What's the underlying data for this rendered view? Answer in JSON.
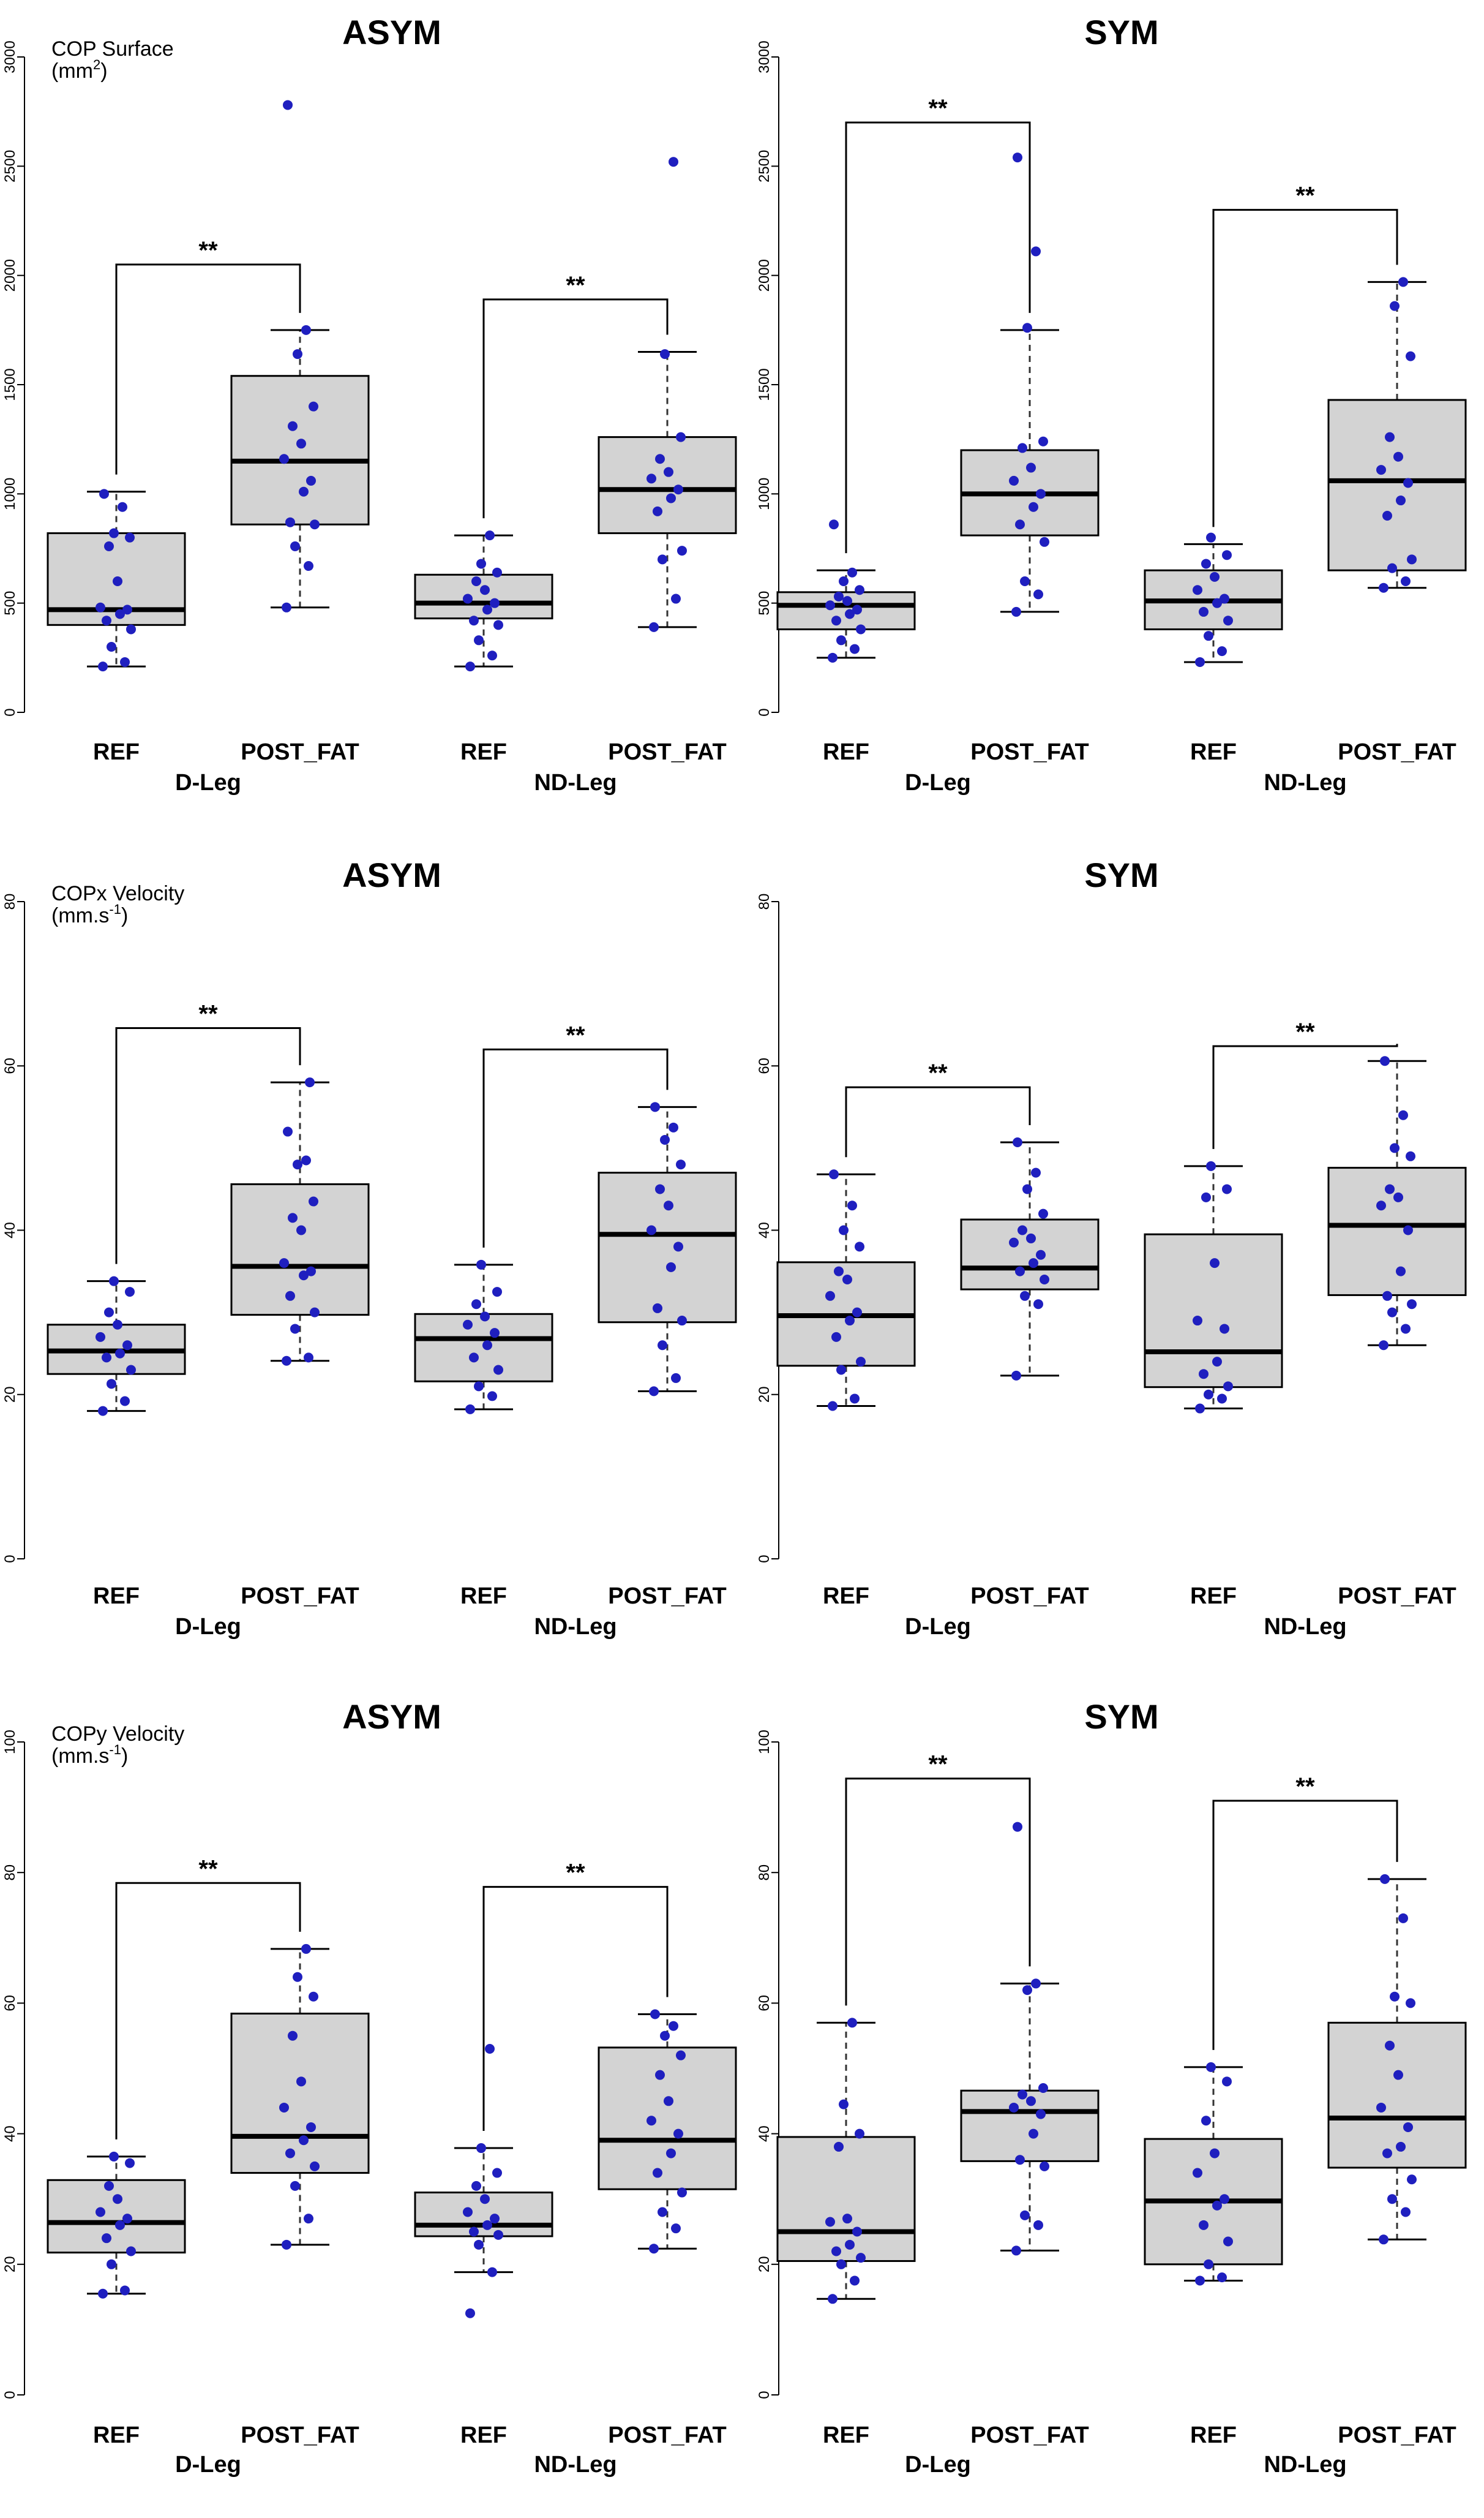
{
  "chart_data": [
    {
      "type": "boxplot",
      "title": "ASYM",
      "ylabel": "COP Surface",
      "yunit_base": "(mm",
      "yunit_sup": "2",
      "yunit_end": ")",
      "ylim": [
        0,
        3000
      ],
      "yticks": [
        "0",
        "500",
        "1000",
        "1500",
        "2000",
        "2500",
        "3000"
      ],
      "categories": [
        "REF",
        "POST_FAT",
        "REF",
        "POST_FAT"
      ],
      "groups": [
        "D-Leg",
        "ND-Leg"
      ],
      "boxes": [
        {
          "q1": 400,
          "median": 470,
          "q3": 820,
          "whisker_low": 210,
          "whisker_high": 1010,
          "points": [
            210,
            230,
            300,
            380,
            420,
            450,
            470,
            480,
            600,
            760,
            800,
            820,
            940,
            1000
          ]
        },
        {
          "q1": 860,
          "median": 1150,
          "q3": 1540,
          "whisker_low": 480,
          "whisker_high": 1750,
          "points": [
            480,
            670,
            760,
            860,
            870,
            1010,
            1060,
            1160,
            1230,
            1310,
            1400,
            1640,
            1750,
            2780
          ]
        },
        {
          "q1": 430,
          "median": 500,
          "q3": 630,
          "whisker_low": 210,
          "whisker_high": 810,
          "points": [
            210,
            260,
            330,
            400,
            420,
            470,
            500,
            520,
            560,
            600,
            640,
            680,
            810
          ]
        },
        {
          "q1": 820,
          "median": 1020,
          "q3": 1260,
          "whisker_low": 390,
          "whisker_high": 1650,
          "points": [
            390,
            520,
            700,
            740,
            920,
            980,
            1020,
            1070,
            1100,
            1160,
            1260,
            1640,
            2520
          ]
        }
      ],
      "comparisons": [
        {
          "from": 0,
          "to": 1,
          "y": 2050,
          "label": "**"
        },
        {
          "from": 2,
          "to": 3,
          "y": 1890,
          "label": "**"
        }
      ]
    },
    {
      "type": "boxplot",
      "title": "SYM",
      "ylabel": "",
      "ylim": [
        0,
        3000
      ],
      "yticks": [
        "0",
        "500",
        "1000",
        "1500",
        "2000",
        "2500",
        "3000"
      ],
      "categories": [
        "REF",
        "POST_FAT",
        "REF",
        "POST_FAT"
      ],
      "groups": [
        "D-Leg",
        "ND-Leg"
      ],
      "boxes": [
        {
          "q1": 380,
          "median": 490,
          "q3": 550,
          "whisker_low": 250,
          "whisker_high": 650,
          "points": [
            250,
            290,
            330,
            380,
            420,
            450,
            470,
            490,
            510,
            530,
            560,
            600,
            640,
            860
          ]
        },
        {
          "q1": 810,
          "median": 1000,
          "q3": 1200,
          "whisker_low": 460,
          "whisker_high": 1750,
          "points": [
            460,
            540,
            600,
            780,
            860,
            940,
            1000,
            1060,
            1120,
            1210,
            1240,
            1760,
            2110,
            2540
          ]
        },
        {
          "q1": 380,
          "median": 510,
          "q3": 650,
          "whisker_low": 230,
          "whisker_high": 770,
          "points": [
            230,
            280,
            350,
            420,
            460,
            500,
            520,
            560,
            620,
            680,
            720,
            800
          ]
        },
        {
          "q1": 650,
          "median": 1060,
          "q3": 1430,
          "whisker_low": 570,
          "whisker_high": 1970,
          "points": [
            570,
            600,
            660,
            700,
            900,
            970,
            1050,
            1110,
            1170,
            1260,
            1630,
            1860,
            1970
          ]
        }
      ],
      "comparisons": [
        {
          "from": 0,
          "to": 1,
          "y": 2700,
          "label": "**"
        },
        {
          "from": 2,
          "to": 3,
          "y": 2300,
          "label": "**"
        }
      ]
    },
    {
      "type": "boxplot",
      "title": "ASYM",
      "ylabel": "COPx Velocity",
      "yunit_base": "(mm.s",
      "yunit_sup": "-1",
      "yunit_end": ")",
      "ylim": [
        0,
        80
      ],
      "yticks": [
        "0",
        "20",
        "40",
        "60",
        "80"
      ],
      "categories": [
        "REF",
        "POST_FAT",
        "REF",
        "POST_FAT"
      ],
      "groups": [
        "D-Leg",
        "ND-Leg"
      ],
      "boxes": [
        {
          "q1": 22.5,
          "median": 25.3,
          "q3": 28.5,
          "whisker_low": 18.0,
          "whisker_high": 33.8,
          "points": [
            18.0,
            19.2,
            21.3,
            23.0,
            24.5,
            25.0,
            26.0,
            27.0,
            28.5,
            30.0,
            32.5,
            33.8
          ]
        },
        {
          "q1": 29.7,
          "median": 35.6,
          "q3": 45.6,
          "whisker_low": 24.1,
          "whisker_high": 58.0,
          "points": [
            24.1,
            24.5,
            28.0,
            30.0,
            32.0,
            34.5,
            35.0,
            36.0,
            40.0,
            41.5,
            43.5,
            48.0,
            48.5,
            52.0,
            58.0
          ]
        },
        {
          "q1": 21.6,
          "median": 26.8,
          "q3": 29.8,
          "whisker_low": 18.2,
          "whisker_high": 35.8,
          "points": [
            18.2,
            19.8,
            21.0,
            23.0,
            24.5,
            26.0,
            27.5,
            28.5,
            29.5,
            31.0,
            32.5,
            35.8
          ]
        },
        {
          "q1": 28.8,
          "median": 39.5,
          "q3": 47.0,
          "whisker_low": 20.4,
          "whisker_high": 55.0,
          "points": [
            20.4,
            22.0,
            26.0,
            29.0,
            30.5,
            35.5,
            38.0,
            40.0,
            43.0,
            45.0,
            48.0,
            51.0,
            52.5,
            55.0
          ]
        }
      ],
      "comparisons": [
        {
          "from": 0,
          "to": 1,
          "y": 64.6,
          "label": "**"
        },
        {
          "from": 2,
          "to": 3,
          "y": 62.0,
          "label": "**"
        }
      ]
    },
    {
      "type": "boxplot",
      "title": "SYM",
      "ylabel": "",
      "ylim": [
        0,
        80
      ],
      "yticks": [
        "0",
        "20",
        "40",
        "60",
        "80"
      ],
      "categories": [
        "REF",
        "POST_FAT",
        "REF",
        "POST_FAT"
      ],
      "groups": [
        "D-Leg",
        "ND-Leg"
      ],
      "boxes": [
        {
          "q1": 23.5,
          "median": 29.6,
          "q3": 36.1,
          "whisker_low": 18.6,
          "whisker_high": 46.8,
          "points": [
            18.6,
            19.5,
            23.0,
            24.0,
            27.0,
            29.0,
            30.0,
            32.0,
            34.0,
            35.0,
            38.0,
            40.0,
            43.0,
            46.8
          ]
        },
        {
          "q1": 32.8,
          "median": 35.4,
          "q3": 41.3,
          "whisker_low": 22.3,
          "whisker_high": 50.7,
          "points": [
            22.3,
            31.0,
            32.0,
            34.0,
            35.0,
            36.0,
            37.0,
            38.5,
            39.0,
            40.0,
            42.0,
            45.0,
            47.0,
            50.7
          ]
        },
        {
          "q1": 20.9,
          "median": 25.2,
          "q3": 39.5,
          "whisker_low": 18.3,
          "whisker_high": 47.8,
          "points": [
            18.3,
            19.5,
            20.0,
            21.0,
            22.5,
            24.0,
            28.0,
            29.0,
            36.0,
            44.0,
            45.0,
            47.8
          ]
        },
        {
          "q1": 32.1,
          "median": 40.6,
          "q3": 47.6,
          "whisker_low": 26.0,
          "whisker_high": 60.6,
          "points": [
            26.0,
            28.0,
            30.0,
            31.0,
            32.0,
            35.0,
            40.0,
            43.0,
            44.0,
            45.0,
            49.0,
            50.0,
            54.0,
            60.6
          ]
        }
      ],
      "comparisons": [
        {
          "from": 0,
          "to": 1,
          "y": 57.4,
          "label": "**"
        },
        {
          "from": 2,
          "to": 3,
          "y": 62.4,
          "label": "**"
        }
      ]
    },
    {
      "type": "boxplot",
      "title": "ASYM",
      "ylabel": "COPy Velocity",
      "yunit_base": "(mm.s",
      "yunit_sup": "-1",
      "yunit_end": ")",
      "ylim": [
        0,
        100
      ],
      "yticks": [
        "0",
        "20",
        "40",
        "60",
        "80",
        "100"
      ],
      "categories": [
        "REF",
        "POST_FAT",
        "REF",
        "POST_FAT"
      ],
      "groups": [
        "D-Leg",
        "ND-Leg"
      ],
      "boxes": [
        {
          "q1": 21.8,
          "median": 26.4,
          "q3": 32.9,
          "whisker_low": 15.5,
          "whisker_high": 36.5,
          "points": [
            15.5,
            16.0,
            20.0,
            22.0,
            24.0,
            26.0,
            27.0,
            28.0,
            30.0,
            32.0,
            35.5,
            36.5
          ]
        },
        {
          "q1": 34.0,
          "median": 39.6,
          "q3": 58.4,
          "whisker_low": 23.0,
          "whisker_high": 68.3,
          "points": [
            23.0,
            27.0,
            32.0,
            35.0,
            37.0,
            39.0,
            41.0,
            44.0,
            48.0,
            55.0,
            61.0,
            64.0,
            68.3
          ]
        },
        {
          "q1": 24.3,
          "median": 26.0,
          "q3": 31.0,
          "whisker_low": 18.8,
          "whisker_high": 37.8,
          "points": [
            12.5,
            18.8,
            23.0,
            24.5,
            25.0,
            26.0,
            27.0,
            28.0,
            30.0,
            32.0,
            34.0,
            37.8,
            53.0
          ]
        },
        {
          "q1": 31.5,
          "median": 39.0,
          "q3": 53.2,
          "whisker_low": 22.4,
          "whisker_high": 58.3,
          "points": [
            22.4,
            25.5,
            28.0,
            31.0,
            34.0,
            37.0,
            40.0,
            42.0,
            45.0,
            49.0,
            52.0,
            55.0,
            56.5,
            58.3
          ]
        }
      ],
      "comparisons": [
        {
          "from": 0,
          "to": 1,
          "y": 78.4,
          "label": "**"
        },
        {
          "from": 2,
          "to": 3,
          "y": 77.8,
          "label": "**"
        }
      ]
    },
    {
      "type": "boxplot",
      "title": "SYM",
      "ylabel": "",
      "ylim": [
        0,
        100
      ],
      "yticks": [
        "0",
        "20",
        "40",
        "60",
        "80",
        "100"
      ],
      "categories": [
        "REF",
        "POST_FAT",
        "REF",
        "POST_FAT"
      ],
      "groups": [
        "D-Leg",
        "ND-Leg"
      ],
      "boxes": [
        {
          "q1": 20.5,
          "median": 25.0,
          "q3": 39.5,
          "whisker_low": 14.7,
          "whisker_high": 57.0,
          "points": [
            14.7,
            17.5,
            20.0,
            21.0,
            22.0,
            23.0,
            25.0,
            26.5,
            27.0,
            38.0,
            40.0,
            44.5,
            57.0
          ]
        },
        {
          "q1": 35.8,
          "median": 43.4,
          "q3": 46.6,
          "whisker_low": 22.1,
          "whisker_high": 63.0,
          "points": [
            22.1,
            26.0,
            27.5,
            35.0,
            36.0,
            40.0,
            43.0,
            44.0,
            45.0,
            46.0,
            47.0,
            62.0,
            63.0,
            87.0
          ]
        },
        {
          "q1": 20.0,
          "median": 29.7,
          "q3": 39.2,
          "whisker_low": 17.5,
          "whisker_high": 50.2,
          "points": [
            17.5,
            18.0,
            20.0,
            23.5,
            26.0,
            29.0,
            30.0,
            34.0,
            37.0,
            42.0,
            48.0,
            50.2
          ]
        },
        {
          "q1": 34.8,
          "median": 42.4,
          "q3": 57.0,
          "whisker_low": 23.8,
          "whisker_high": 79.0,
          "points": [
            23.8,
            28.0,
            30.0,
            33.0,
            37.0,
            38.0,
            41.0,
            44.0,
            49.0,
            53.5,
            60.0,
            61.0,
            73.0,
            79.0
          ]
        }
      ],
      "comparisons": [
        {
          "from": 0,
          "to": 1,
          "y": 94.4,
          "label": "**"
        },
        {
          "from": 2,
          "to": 3,
          "y": 91.0,
          "label": "**"
        }
      ]
    }
  ]
}
